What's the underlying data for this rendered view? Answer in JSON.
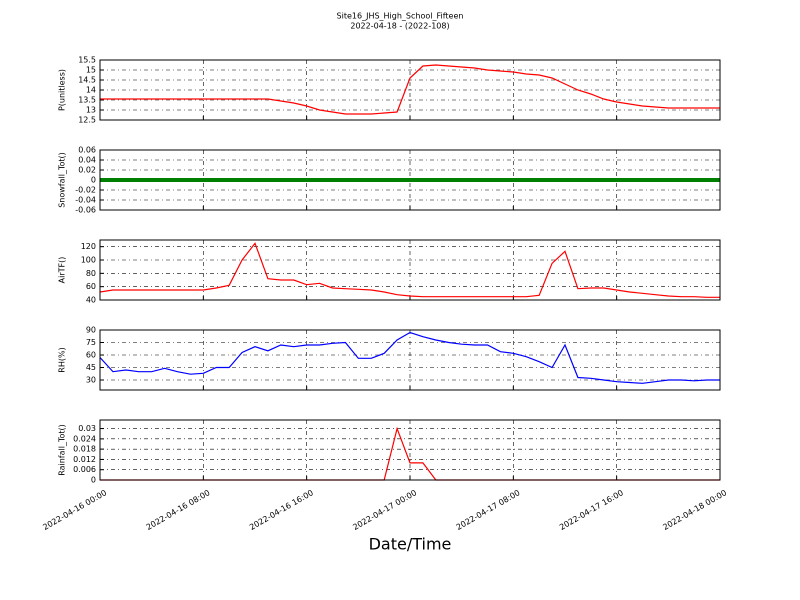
{
  "title": "Site16_JHS_High_School_Fifteen",
  "subtitle": "2022-04-18 - (2022-108)",
  "xlabel": "Date/Time",
  "x": [
    "2022-04-16 00:00",
    "2022-04-16 01:00",
    "2022-04-16 02:00",
    "2022-04-16 03:00",
    "2022-04-16 04:00",
    "2022-04-16 05:00",
    "2022-04-16 06:00",
    "2022-04-16 07:00",
    "2022-04-16 08:00",
    "2022-04-16 09:00",
    "2022-04-16 10:00",
    "2022-04-16 11:00",
    "2022-04-16 12:00",
    "2022-04-16 13:00",
    "2022-04-16 14:00",
    "2022-04-16 15:00",
    "2022-04-16 16:00",
    "2022-04-16 17:00",
    "2022-04-16 18:00",
    "2022-04-16 19:00",
    "2022-04-16 20:00",
    "2022-04-16 21:00",
    "2022-04-16 22:00",
    "2022-04-16 23:00",
    "2022-04-17 00:00",
    "2022-04-17 01:00",
    "2022-04-17 02:00",
    "2022-04-17 03:00",
    "2022-04-17 04:00",
    "2022-04-17 05:00",
    "2022-04-17 06:00",
    "2022-04-17 07:00",
    "2022-04-17 08:00",
    "2022-04-17 09:00",
    "2022-04-17 10:00",
    "2022-04-17 11:00",
    "2022-04-17 12:00",
    "2022-04-17 13:00",
    "2022-04-17 14:00",
    "2022-04-17 15:00",
    "2022-04-17 16:00",
    "2022-04-17 17:00",
    "2022-04-17 18:00",
    "2022-04-17 19:00",
    "2022-04-17 20:00",
    "2022-04-17 21:00",
    "2022-04-17 22:00",
    "2022-04-17 23:00",
    "2022-04-18 00:00"
  ],
  "xlim": [
    "2022-04-16 00:00",
    "2022-04-18 00:00"
  ],
  "xticks": [
    "2022-04-16 00:00",
    "2022-04-16 08:00",
    "2022-04-16 16:00",
    "2022-04-17 00:00",
    "2022-04-17 08:00",
    "2022-04-17 16:00",
    "2022-04-18 00:00"
  ],
  "chart_data": [
    {
      "type": "line",
      "ylabel": "P(unitless)",
      "ylim": [
        12.5,
        15.5
      ],
      "yticks": [
        12.5,
        13.0,
        13.5,
        14.0,
        14.5,
        15.0,
        15.5
      ],
      "grid": true,
      "color": "#ff0000",
      "values": [
        13.55,
        13.55,
        13.55,
        13.55,
        13.55,
        13.55,
        13.55,
        13.55,
        13.55,
        13.55,
        13.55,
        13.55,
        13.55,
        13.55,
        13.45,
        13.35,
        13.2,
        13.0,
        12.9,
        12.8,
        12.8,
        12.8,
        12.85,
        12.9,
        14.6,
        15.2,
        15.25,
        15.2,
        15.15,
        15.1,
        15.0,
        14.95,
        14.9,
        14.8,
        14.75,
        14.6,
        14.3,
        14.0,
        13.8,
        13.55,
        13.4,
        13.3,
        13.2,
        13.15,
        13.1,
        13.1,
        13.1,
        13.1,
        13.1
      ]
    },
    {
      "type": "line",
      "ylabel": "Snowfall_Tot()",
      "ylim": [
        -0.06,
        0.06
      ],
      "yticks": [
        -0.06,
        -0.04,
        -0.02,
        0.0,
        0.02,
        0.04,
        0.06
      ],
      "grid": true,
      "color": "#008000",
      "values": [
        0,
        0,
        0,
        0,
        0,
        0,
        0,
        0,
        0,
        0,
        0,
        0,
        0,
        0,
        0,
        0,
        0,
        0,
        0,
        0,
        0,
        0,
        0,
        0,
        0,
        0,
        0,
        0,
        0,
        0,
        0,
        0,
        0,
        0,
        0,
        0,
        0,
        0,
        0,
        0,
        0,
        0,
        0,
        0,
        0,
        0,
        0,
        0,
        0
      ]
    },
    {
      "type": "line",
      "ylabel": "AirTF()",
      "ylim": [
        40,
        130
      ],
      "yticks": [
        40,
        60,
        80,
        100,
        120
      ],
      "grid": true,
      "color": "#ff0000",
      "values": [
        52,
        55,
        55,
        55,
        55,
        55,
        55,
        55,
        55,
        58,
        62,
        100,
        125,
        72,
        70,
        70,
        63,
        65,
        58,
        57,
        56,
        55,
        52,
        48,
        46,
        45,
        45,
        45,
        45,
        45,
        45,
        45,
        45,
        45,
        47,
        95,
        113,
        57,
        58,
        58,
        55,
        52,
        50,
        48,
        46,
        45,
        45,
        44,
        44
      ]
    },
    {
      "type": "line",
      "ylabel": "RH(%)",
      "ylim": [
        18,
        90
      ],
      "yticks": [
        30,
        45,
        60,
        75,
        90
      ],
      "grid": true,
      "color": "#0000ff",
      "values": [
        57,
        40,
        42,
        40,
        40,
        44,
        40,
        37,
        38,
        45,
        45,
        63,
        70,
        65,
        72,
        70,
        72,
        72,
        74,
        75,
        56,
        56,
        62,
        78,
        87,
        82,
        78,
        75,
        73,
        72,
        72,
        64,
        62,
        58,
        52,
        45,
        72,
        33,
        32,
        30,
        28,
        27,
        26,
        28,
        30,
        30,
        29,
        30,
        30
      ]
    },
    {
      "type": "line",
      "ylabel": "Rainfall_Tot()",
      "ylim": [
        0,
        0.035
      ],
      "yticks": [
        0.0,
        0.006,
        0.012,
        0.018,
        0.024,
        0.03
      ],
      "grid": true,
      "color": "#ff0000",
      "values": [
        0,
        0,
        0,
        0,
        0,
        0,
        0,
        0,
        0,
        0,
        0,
        0,
        0,
        0,
        0,
        0,
        0,
        0,
        0,
        0,
        0,
        0,
        0,
        0.03,
        0.01,
        0.01,
        0,
        0,
        0,
        0,
        0,
        0,
        0,
        0,
        0,
        0,
        0,
        0,
        0,
        0,
        0,
        0,
        0,
        0,
        0,
        0,
        0,
        0,
        0
      ]
    }
  ]
}
